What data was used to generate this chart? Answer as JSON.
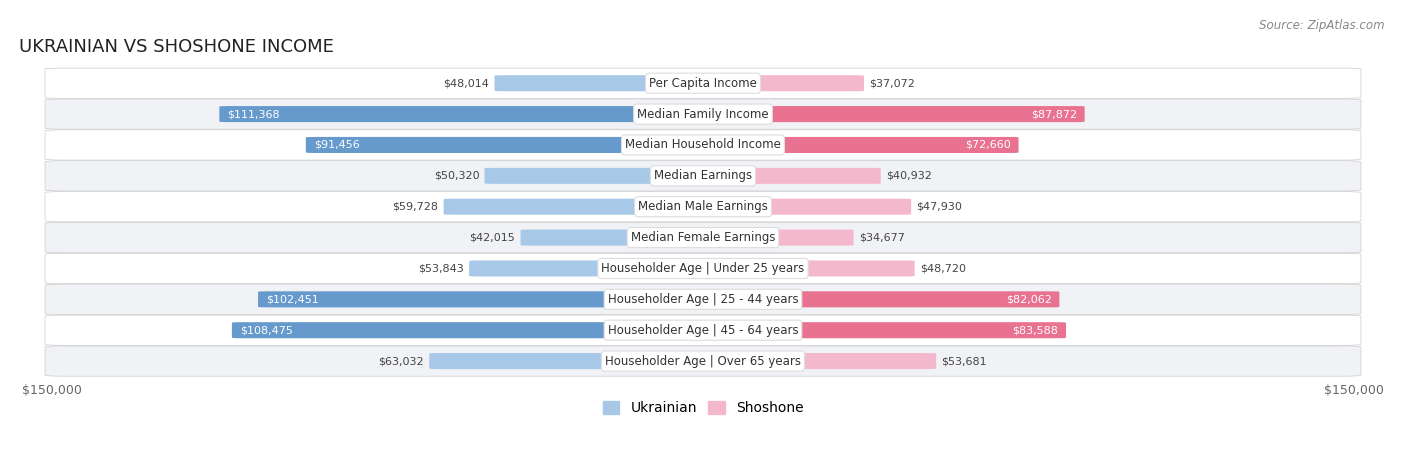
{
  "title": "UKRAINIAN VS SHOSHONE INCOME",
  "source": "Source: ZipAtlas.com",
  "categories": [
    "Per Capita Income",
    "Median Family Income",
    "Median Household Income",
    "Median Earnings",
    "Median Male Earnings",
    "Median Female Earnings",
    "Householder Age | Under 25 years",
    "Householder Age | 25 - 44 years",
    "Householder Age | 45 - 64 years",
    "Householder Age | Over 65 years"
  ],
  "ukrainian_values": [
    48014,
    111368,
    91456,
    50320,
    59728,
    42015,
    53843,
    102451,
    108475,
    63032
  ],
  "shoshone_values": [
    37072,
    87872,
    72660,
    40932,
    47930,
    34677,
    48720,
    82062,
    83588,
    53681
  ],
  "ukrainian_labels": [
    "$48,014",
    "$111,368",
    "$91,456",
    "$50,320",
    "$59,728",
    "$42,015",
    "$53,843",
    "$102,451",
    "$108,475",
    "$63,032"
  ],
  "shoshone_labels": [
    "$37,072",
    "$87,872",
    "$72,660",
    "$40,932",
    "$47,930",
    "$34,677",
    "$48,720",
    "$82,062",
    "$83,588",
    "$53,681"
  ],
  "ukr_label_inside": [
    false,
    true,
    true,
    false,
    false,
    false,
    false,
    true,
    true,
    false
  ],
  "sho_label_inside": [
    false,
    true,
    true,
    false,
    false,
    false,
    false,
    true,
    true,
    false
  ],
  "ukrainian_color_light": "#a8c8e8",
  "ukrainian_color_dark": "#6699cc",
  "shoshone_color_light": "#f4b8cc",
  "shoshone_color_dark": "#e8728f",
  "max_value": 150000,
  "row_bg_odd": "#f0f0f0",
  "row_bg_even": "#fafafa",
  "bar_height": 0.52,
  "title_fontsize": 13,
  "label_fontsize": 8.5,
  "axis_label_fontsize": 9,
  "legend_fontsize": 10
}
